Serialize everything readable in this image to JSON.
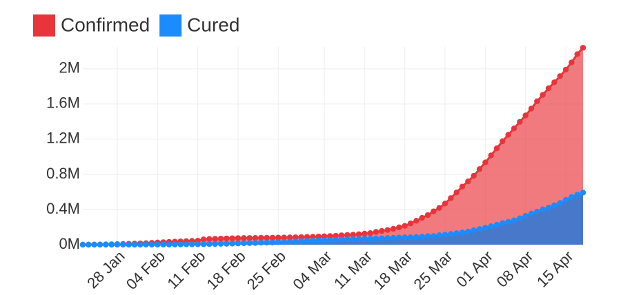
{
  "chart_data": {
    "type": "area",
    "categories": [
      null,
      null,
      null,
      null,
      null,
      null,
      "28 Jan",
      null,
      null,
      null,
      null,
      null,
      null,
      "04 Feb",
      null,
      null,
      null,
      null,
      null,
      null,
      "11 Feb",
      null,
      null,
      null,
      null,
      null,
      null,
      "18 Feb",
      null,
      null,
      null,
      null,
      null,
      null,
      "25 Feb",
      null,
      null,
      null,
      null,
      null,
      null,
      null,
      "04 Mar",
      null,
      null,
      null,
      null,
      null,
      null,
      "11 Mar",
      null,
      null,
      null,
      null,
      null,
      null,
      "18 Mar",
      null,
      null,
      null,
      null,
      null,
      null,
      "25 Mar",
      null,
      null,
      null,
      null,
      null,
      null,
      "01 Apr",
      null,
      null,
      null,
      null,
      null,
      null,
      "08 Apr",
      null,
      null,
      null,
      null,
      null,
      null,
      "15 Apr",
      null,
      null,
      null
    ],
    "series": [
      {
        "name": "Confirmed",
        "color": "#e8353b",
        "fill": "rgba(236,70,76,0.72)",
        "values": [
          600,
          900,
          1300,
          2000,
          2900,
          4500,
          6000,
          7800,
          9800,
          11900,
          14600,
          17400,
          20600,
          24600,
          28300,
          31500,
          34900,
          37600,
          40600,
          43100,
          45200,
          60400,
          64600,
          67100,
          69300,
          71300,
          73300,
          75200,
          75600,
          76200,
          76800,
          78600,
          78900,
          79600,
          80400,
          81400,
          82700,
          84100,
          86000,
          88400,
          90300,
          92800,
          95100,
          97900,
          101800,
          105800,
          109800,
          114000,
          119000,
          126000,
          132000,
          145000,
          156000,
          167000,
          181000,
          197000,
          214000,
          242000,
          272000,
          305000,
          337000,
          379000,
          418000,
          468000,
          530000,
          594000,
          661000,
          720000,
          783000,
          860000,
          935000,
          1016000,
          1096000,
          1177000,
          1250000,
          1322000,
          1397000,
          1470000,
          1548000,
          1631000,
          1704000,
          1779000,
          1847000,
          1917000,
          1991000,
          2073000,
          2167000,
          2240000
        ]
      },
      {
        "name": "Cured",
        "color": "#1a8cff",
        "fill": "rgba(62,120,206,0.95)",
        "values": [
          28,
          30,
          36,
          39,
          52,
          61,
          107,
          126,
          143,
          222,
          284,
          472,
          623,
          852,
          1124,
          1487,
          2011,
          2616,
          3244,
          3946,
          4683,
          5150,
          6295,
          8058,
          9395,
          10865,
          12583,
          14352,
          16121,
          18177,
          18890,
          22886,
          23394,
          25227,
          27905,
          30384,
          33277,
          36711,
          39782,
          42716,
          45602,
          48229,
          51171,
          53797,
          55866,
          58359,
          60695,
          62512,
          64404,
          67003,
          68324,
          70251,
          72624,
          76034,
          78088,
          80840,
          83207,
          84854,
          87256,
          91499,
          97704,
          98396,
          107990,
          113787,
          122150,
          130915,
          139415,
          149082,
          164566,
          178034,
          193177,
          210263,
          225796,
          246152,
          260012,
          276515,
          300054,
          328661,
          353975,
          376096,
          402110,
          421722,
          448655,
          474261,
          510000,
          542000,
          568000,
          593000
        ]
      }
    ],
    "ylim": [
      0,
      2250000
    ],
    "yticks": [
      {
        "value": 0,
        "label": "0M"
      },
      {
        "value": 400000,
        "label": "0.4M"
      },
      {
        "value": 800000,
        "label": "0.8M"
      },
      {
        "value": 1200000,
        "label": "1.2M"
      },
      {
        "value": 1600000,
        "label": "1.6M"
      },
      {
        "value": 2000000,
        "label": "2M"
      }
    ],
    "grid": true,
    "legend": "top-left"
  }
}
